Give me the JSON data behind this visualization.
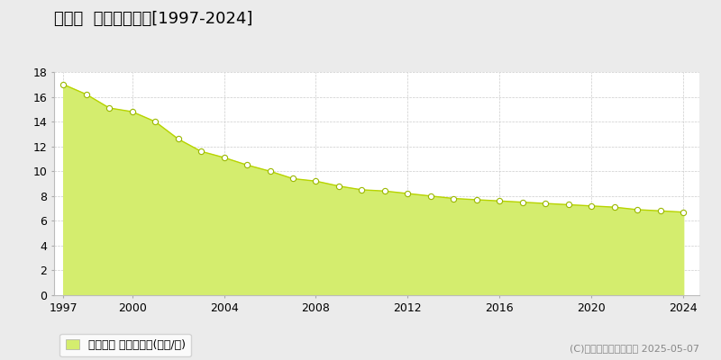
{
  "title": "御嵩町  基準地価推移[1997-2024]",
  "years": [
    1997,
    1998,
    1999,
    2000,
    2001,
    2002,
    2003,
    2004,
    2005,
    2006,
    2007,
    2008,
    2009,
    2010,
    2011,
    2012,
    2013,
    2014,
    2015,
    2016,
    2017,
    2018,
    2019,
    2020,
    2021,
    2022,
    2023,
    2024
  ],
  "values": [
    17.0,
    16.2,
    15.1,
    14.8,
    14.0,
    12.6,
    11.6,
    11.1,
    10.5,
    10.0,
    9.4,
    9.2,
    8.8,
    8.5,
    8.4,
    8.2,
    8.0,
    7.8,
    7.7,
    7.6,
    7.5,
    7.4,
    7.3,
    7.2,
    7.1,
    6.9,
    6.8,
    6.7
  ],
  "fill_color": "#d4ed6e",
  "line_color": "#b8d400",
  "marker_facecolor": "#ffffff",
  "marker_edgecolor": "#9ab800",
  "background_color": "#ebebeb",
  "plot_bg_color": "#ffffff",
  "grid_color": "#cccccc",
  "ylim": [
    0,
    18
  ],
  "yticks": [
    0,
    2,
    4,
    6,
    8,
    10,
    12,
    14,
    16,
    18
  ],
  "xticks": [
    1997,
    2000,
    2004,
    2008,
    2012,
    2016,
    2020,
    2024
  ],
  "legend_label": "基準地価 平均坪単価(万円/坪)",
  "copyright": "(C)土地価格ドットコム 2025-05-07",
  "title_fontsize": 13,
  "legend_fontsize": 9,
  "tick_fontsize": 9,
  "copyright_fontsize": 8
}
